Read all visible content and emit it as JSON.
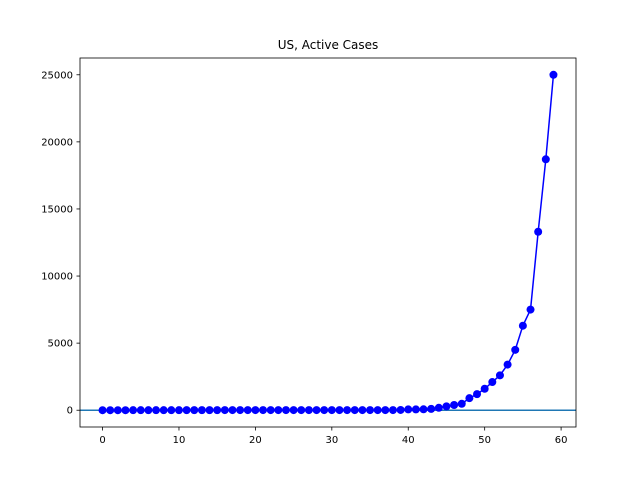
{
  "chart_data": {
    "type": "line",
    "title": "US, Active Cases",
    "xlabel": "",
    "ylabel": "",
    "xlim": [
      -2.95,
      61.95
    ],
    "ylim": [
      -1250,
      26250
    ],
    "x_ticks": [
      0,
      10,
      20,
      30,
      40,
      50,
      60
    ],
    "y_ticks": [
      0,
      5000,
      10000,
      15000,
      20000,
      25000
    ],
    "grid": false,
    "legend": "none",
    "baseline": {
      "y": 0,
      "color": "#1f77b4"
    },
    "series": [
      {
        "color": "#0000ff",
        "marker": "circle",
        "x": [
          0,
          1,
          2,
          3,
          4,
          5,
          6,
          7,
          8,
          9,
          10,
          11,
          12,
          13,
          14,
          15,
          16,
          17,
          18,
          19,
          20,
          21,
          22,
          23,
          24,
          25,
          26,
          27,
          28,
          29,
          30,
          31,
          32,
          33,
          34,
          35,
          36,
          37,
          38,
          39,
          40,
          41,
          42,
          43,
          44,
          45,
          46,
          47,
          48,
          49,
          50,
          51,
          52,
          53,
          54,
          55,
          56,
          57,
          58,
          59
        ],
        "y": [
          1,
          1,
          2,
          2,
          5,
          5,
          5,
          5,
          5,
          6,
          6,
          8,
          8,
          8,
          8,
          8,
          10,
          10,
          11,
          11,
          11,
          11,
          11,
          11,
          11,
          11,
          11,
          11,
          11,
          11,
          11,
          11,
          11,
          11,
          11,
          11,
          11,
          11,
          11,
          21,
          60,
          60,
          70,
          100,
          180,
          290,
          390,
          480,
          900,
          1200,
          1600,
          2100,
          2600,
          3400,
          4500,
          6300,
          7500,
          13300,
          18700,
          25000
        ]
      }
    ]
  }
}
